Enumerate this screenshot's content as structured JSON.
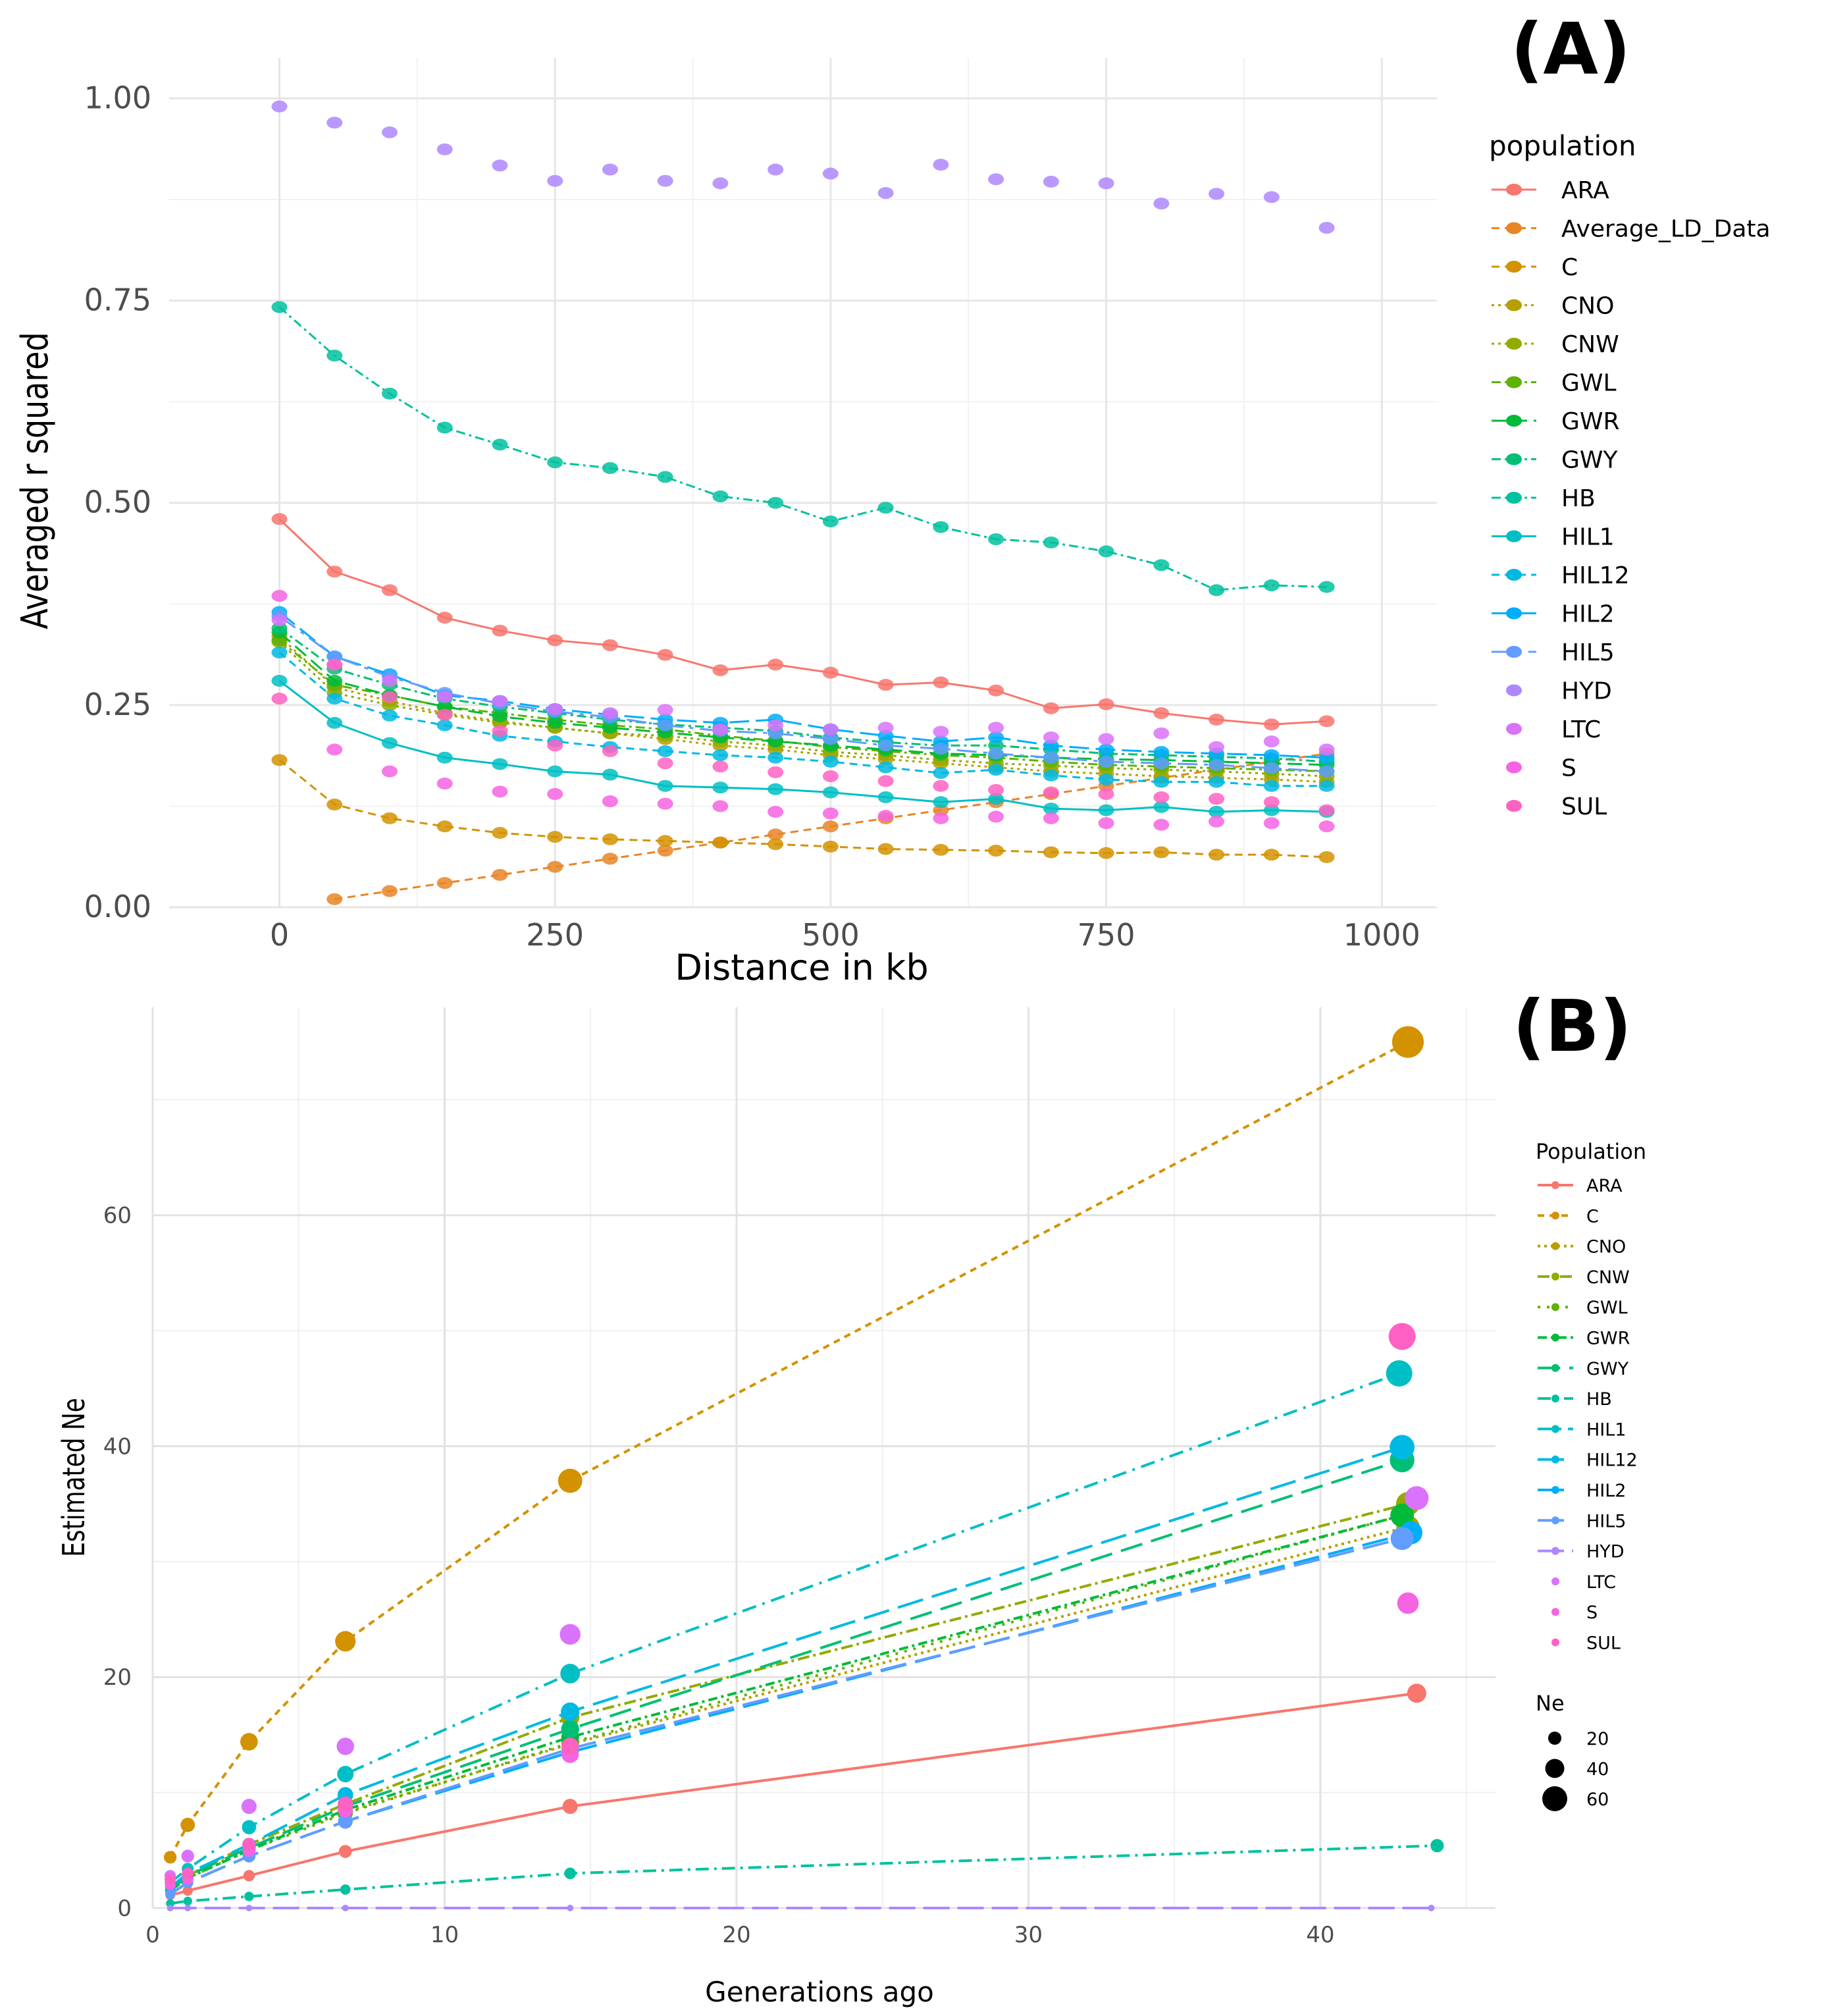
{
  "panels": {
    "a": {
      "label": "(A)"
    },
    "b": {
      "label": "(B)"
    }
  },
  "colors": {
    "ARA": "#F8766D",
    "Average_LD_Data": "#E88526",
    "C": "#D39200",
    "CNO": "#B79F00",
    "CNW": "#93AA00",
    "GWL": "#5EB300",
    "GWR": "#00BA38",
    "GWY": "#00BF74",
    "HB": "#00C19F",
    "HIL1": "#00BFC4",
    "HIL12": "#00B9E3",
    "HIL2": "#00ADFA",
    "HIL5": "#619CFF",
    "HYD": "#AE87FF",
    "LTC": "#DB72FB",
    "S": "#F564E3",
    "SUL": "#FF61C3"
  },
  "chart_data": [
    {
      "id": "A",
      "type": "line",
      "title": "",
      "xlabel": "Distance in kb",
      "ylabel": "Averaged r squared",
      "xlim": [
        -100,
        1050
      ],
      "ylim": [
        0,
        1.05
      ],
      "xticks": [
        0,
        250,
        500,
        750,
        1000
      ],
      "yticks": [
        0.0,
        0.25,
        0.5,
        0.75,
        1.0
      ],
      "ytick_labels": [
        "0.00",
        "0.25",
        "0.50",
        "0.75",
        "1.00"
      ],
      "legend_title": "population",
      "legend_position": "right",
      "x": [
        0,
        50,
        100,
        150,
        200,
        250,
        300,
        350,
        400,
        450,
        500,
        550,
        600,
        650,
        700,
        750,
        800,
        850,
        900,
        950
      ],
      "series": [
        {
          "name": "ARA",
          "values": [
            0.48,
            0.415,
            0.392,
            0.358,
            0.342,
            0.33,
            0.324,
            0.312,
            0.293,
            0.3,
            0.29,
            0.275,
            0.278,
            0.268,
            0.246,
            0.251,
            0.24,
            0.232,
            0.226,
            0.23
          ]
        },
        {
          "name": "Average_LD_Data",
          "values": [
            null,
            0.01,
            0.02,
            0.03,
            0.04,
            0.05,
            0.06,
            0.07,
            0.08,
            0.09,
            0.1,
            0.11,
            0.12,
            0.13,
            0.14,
            0.15,
            0.16,
            0.17,
            0.18,
            0.19
          ]
        },
        {
          "name": "C",
          "values": [
            0.182,
            0.127,
            0.11,
            0.1,
            0.092,
            0.087,
            0.084,
            0.082,
            0.08,
            0.078,
            0.075,
            0.072,
            0.071,
            0.07,
            0.068,
            0.067,
            0.068,
            0.065,
            0.065,
            0.062
          ]
        },
        {
          "name": "CNO",
          "values": [
            0.335,
            0.272,
            0.255,
            0.24,
            0.23,
            0.222,
            0.215,
            0.208,
            0.2,
            0.195,
            0.188,
            0.183,
            0.178,
            0.173,
            0.168,
            0.165,
            0.162,
            0.16,
            0.158,
            0.155
          ]
        },
        {
          "name": "CNW",
          "values": [
            0.328,
            0.265,
            0.25,
            0.238,
            0.228,
            0.222,
            0.215,
            0.212,
            0.205,
            0.2,
            0.192,
            0.188,
            0.182,
            0.178,
            0.175,
            0.172,
            0.17,
            0.168,
            0.165,
            0.162
          ]
        },
        {
          "name": "GWL",
          "values": [
            0.33,
            0.275,
            0.262,
            0.248,
            0.24,
            0.232,
            0.225,
            0.22,
            0.212,
            0.206,
            0.198,
            0.193,
            0.188,
            0.185,
            0.18,
            0.176,
            0.174,
            0.172,
            0.17,
            0.168
          ]
        },
        {
          "name": "GWR",
          "values": [
            0.34,
            0.28,
            0.262,
            0.248,
            0.236,
            0.228,
            0.222,
            0.216,
            0.21,
            0.205,
            0.2,
            0.195,
            0.19,
            0.188,
            0.185,
            0.183,
            0.182,
            0.18,
            0.178,
            0.176
          ]
        },
        {
          "name": "GWY",
          "values": [
            0.345,
            0.295,
            0.275,
            0.258,
            0.248,
            0.24,
            0.232,
            0.226,
            0.222,
            0.218,
            0.21,
            0.204,
            0.2,
            0.2,
            0.195,
            0.19,
            0.188,
            0.186,
            0.184,
            0.18
          ]
        },
        {
          "name": "HB",
          "values": [
            0.742,
            0.682,
            0.635,
            0.593,
            0.572,
            0.55,
            0.543,
            0.532,
            0.508,
            0.5,
            0.477,
            0.494,
            0.47,
            0.455,
            0.451,
            0.44,
            0.423,
            0.392,
            0.398,
            0.396
          ]
        },
        {
          "name": "HIL1",
          "values": [
            0.28,
            0.228,
            0.203,
            0.185,
            0.177,
            0.168,
            0.164,
            0.15,
            0.148,
            0.146,
            0.142,
            0.136,
            0.13,
            0.134,
            0.122,
            0.12,
            0.124,
            0.118,
            0.12,
            0.118
          ]
        },
        {
          "name": "HIL12",
          "values": [
            0.315,
            0.258,
            0.237,
            0.225,
            0.212,
            0.205,
            0.198,
            0.193,
            0.188,
            0.185,
            0.18,
            0.173,
            0.166,
            0.17,
            0.163,
            0.158,
            0.155,
            0.155,
            0.15,
            0.15
          ]
        },
        {
          "name": "HIL2",
          "values": [
            0.365,
            0.31,
            0.288,
            0.262,
            0.255,
            0.245,
            0.238,
            0.232,
            0.228,
            0.232,
            0.22,
            0.212,
            0.205,
            0.21,
            0.2,
            0.195,
            0.192,
            0.19,
            0.188,
            0.185
          ]
        },
        {
          "name": "HIL5",
          "values": [
            0.36,
            0.31,
            0.285,
            0.265,
            0.252,
            0.242,
            0.235,
            0.225,
            0.218,
            0.215,
            0.208,
            0.2,
            0.196,
            0.19,
            0.185,
            0.18,
            0.178,
            0.176,
            0.172,
            0.168
          ]
        },
        {
          "name": "HYD",
          "values": [
            0.99,
            0.97,
            0.958,
            0.937,
            0.917,
            0.898,
            0.912,
            0.898,
            0.895,
            0.912,
            0.907,
            0.883,
            0.918,
            0.9,
            0.897,
            0.895,
            0.87,
            0.882,
            0.878,
            0.84
          ]
        },
        {
          "name": "LTC",
          "values": [
            0.355,
            0.3,
            0.28,
            0.26,
            0.255,
            0.245,
            0.24,
            0.244,
            0.22,
            0.225,
            0.22,
            0.222,
            0.217,
            0.222,
            0.21,
            0.208,
            0.215,
            0.198,
            0.205,
            0.195
          ]
        },
        {
          "name": "S",
          "values": [
            0.385,
            0.195,
            0.168,
            0.153,
            0.143,
            0.14,
            0.131,
            0.128,
            0.125,
            0.118,
            0.116,
            0.113,
            0.11,
            0.112,
            0.11,
            0.104,
            0.102,
            0.106,
            0.104,
            0.1
          ]
        },
        {
          "name": "SUL",
          "values": [
            0.258,
            0.3,
            0.26,
            0.238,
            0.218,
            0.2,
            0.193,
            0.178,
            0.174,
            0.167,
            0.162,
            0.156,
            0.15,
            0.145,
            0.142,
            0.14,
            0.136,
            0.134,
            0.13,
            0.12
          ]
        }
      ]
    },
    {
      "id": "B",
      "type": "line",
      "title": "",
      "xlabel": "Generations ago",
      "ylabel": "Estimated Ne",
      "xlim": [
        0,
        46
      ],
      "ylim": [
        0,
        78
      ],
      "xticks": [
        0,
        10,
        20,
        30,
        40
      ],
      "yticks": [
        0,
        20,
        40,
        60
      ],
      "legend_title": "Population",
      "legend_position": "right",
      "size_legend_title": "Ne",
      "size_legend": [
        20,
        40,
        60
      ],
      "series": [
        {
          "name": "ARA",
          "x": [
            0.6,
            1.2,
            3.3,
            6.6,
            14.3,
            43.3
          ],
          "values": [
            1.1,
            1.5,
            2.8,
            4.9,
            8.8,
            18.6
          ]
        },
        {
          "name": "C",
          "x": [
            0.6,
            1.2,
            3.3,
            6.6,
            14.3,
            43.0
          ],
          "values": [
            4.4,
            7.2,
            14.4,
            23.1,
            37.0,
            75.0
          ]
        },
        {
          "name": "CNO",
          "x": [
            0.6,
            1.2,
            3.3,
            6.6,
            14.3,
            43.0
          ],
          "values": [
            1.5,
            2.6,
            5.2,
            8.3,
            14.2,
            33.0
          ]
        },
        {
          "name": "CNW",
          "x": [
            0.6,
            1.2,
            3.3,
            6.6,
            14.3,
            43.0
          ],
          "values": [
            1.6,
            2.8,
            5.5,
            9.0,
            16.5,
            35.0
          ]
        },
        {
          "name": "GWL",
          "x": [
            0.6,
            1.2,
            3.3,
            6.6,
            14.3,
            42.8
          ],
          "values": [
            1.5,
            2.6,
            5.0,
            8.2,
            14.3,
            34.0
          ]
        },
        {
          "name": "GWR",
          "x": [
            0.6,
            1.2,
            3.3,
            6.6,
            14.3,
            42.8
          ],
          "values": [
            1.5,
            2.6,
            5.0,
            8.5,
            14.8,
            34.0
          ]
        },
        {
          "name": "GWY",
          "x": [
            0.6,
            1.2,
            3.3,
            6.6,
            14.3,
            42.8
          ],
          "values": [
            1.6,
            2.8,
            5.2,
            8.8,
            15.5,
            38.8
          ]
        },
        {
          "name": "HB",
          "x": [
            0.6,
            1.2,
            3.3,
            6.6,
            14.3,
            44.0
          ],
          "values": [
            0.4,
            0.6,
            1.0,
            1.6,
            3.0,
            5.4
          ]
        },
        {
          "name": "HIL1",
          "x": [
            0.6,
            1.2,
            3.3,
            6.6,
            14.3,
            42.7
          ],
          "values": [
            2.2,
            3.4,
            7.0,
            11.6,
            20.3,
            46.3
          ]
        },
        {
          "name": "HIL12",
          "x": [
            0.6,
            1.2,
            3.3,
            6.6,
            14.3,
            42.8
          ],
          "values": [
            1.8,
            3.0,
            5.5,
            9.8,
            17.0,
            39.9
          ]
        },
        {
          "name": "HIL2",
          "x": [
            0.6,
            1.2,
            3.3,
            6.6,
            14.3,
            43.1
          ],
          "values": [
            1.2,
            2.2,
            4.5,
            7.5,
            13.5,
            32.5
          ]
        },
        {
          "name": "HIL5",
          "x": [
            0.6,
            1.2,
            3.3,
            6.6,
            14.3,
            42.8
          ],
          "values": [
            1.2,
            2.2,
            4.5,
            7.5,
            13.8,
            32.0
          ]
        },
        {
          "name": "HYD",
          "x": [
            0.6,
            1.2,
            3.3,
            6.6,
            14.3,
            43.8
          ],
          "values": [
            0.0,
            0.0,
            0.0,
            0.0,
            0.0,
            0.0
          ]
        },
        {
          "name": "LTC",
          "x": [
            0.6,
            1.2,
            3.3,
            6.6,
            14.3,
            43.3
          ],
          "values": [
            2.8,
            4.5,
            8.8,
            14.0,
            23.7,
            35.5
          ]
        },
        {
          "name": "S",
          "x": [
            0.6,
            1.2,
            3.3,
            6.6,
            14.3,
            43.0
          ],
          "values": [
            2.0,
            2.5,
            5.0,
            8.5,
            13.3,
            26.4
          ]
        },
        {
          "name": "SUL",
          "x": [
            0.6,
            1.2,
            3.3,
            6.6,
            14.3,
            42.8
          ],
          "values": [
            2.5,
            3.0,
            5.5,
            9.0,
            14.0,
            49.5
          ]
        }
      ]
    }
  ]
}
